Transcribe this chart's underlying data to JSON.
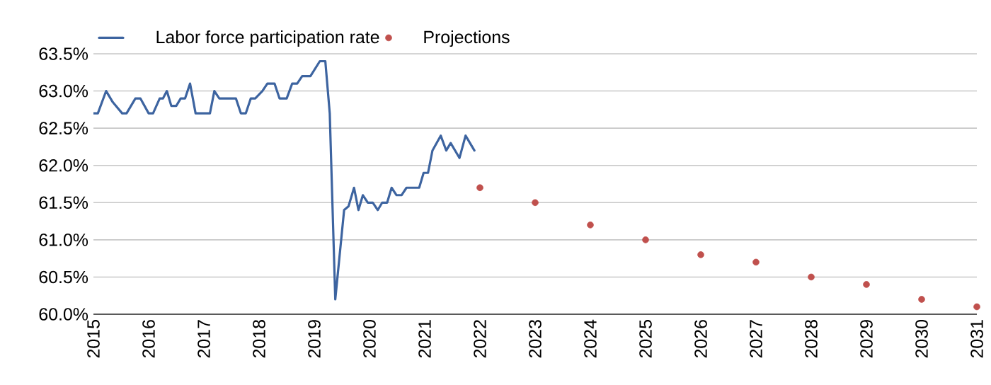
{
  "chart_data": {
    "type": "line",
    "xlim": [
      2015,
      2031
    ],
    "ylim": [
      60.0,
      63.5
    ],
    "xticks": [
      2015,
      2016,
      2017,
      2018,
      2019,
      2020,
      2021,
      2022,
      2023,
      2024,
      2025,
      2026,
      2027,
      2028,
      2029,
      2030,
      2031
    ],
    "yticks": [
      {
        "value": 60.0,
        "label": "60.0%"
      },
      {
        "value": 60.5,
        "label": "60.5%"
      },
      {
        "value": 61.0,
        "label": "61.0%"
      },
      {
        "value": 61.5,
        "label": "61.5%"
      },
      {
        "value": 62.0,
        "label": "62.0%"
      },
      {
        "value": 62.5,
        "label": "62.5%"
      },
      {
        "value": 63.0,
        "label": "63.0%"
      },
      {
        "value": 63.5,
        "label": "63.5%"
      }
    ],
    "grid": "y",
    "legend": "top left",
    "series": [
      {
        "name": "Labor force participation rate",
        "color": "#3d64a0",
        "x": [
          2015.0,
          2015.08,
          2015.23,
          2015.35,
          2015.52,
          2015.6,
          2015.76,
          2015.85,
          2016.0,
          2016.08,
          2016.2,
          2016.26,
          2016.33,
          2016.41,
          2016.5,
          2016.58,
          2016.66,
          2016.75,
          2016.85,
          2017.11,
          2017.19,
          2017.28,
          2017.58,
          2017.67,
          2017.76,
          2017.85,
          2017.93,
          2018.06,
          2018.15,
          2018.28,
          2018.37,
          2018.5,
          2018.6,
          2018.69,
          2018.78,
          2018.93,
          2019.1,
          2019.2,
          2019.28,
          2019.38,
          2019.54,
          2019.62,
          2019.72,
          2019.8,
          2019.88,
          2019.97,
          2020.06,
          2020.15,
          2020.23,
          2020.32,
          2020.4,
          2020.49,
          2020.58,
          2020.67,
          2020.9,
          2020.98,
          2021.06,
          2021.14,
          2021.29,
          2021.39,
          2021.47,
          2021.63,
          2021.74,
          2021.9
        ],
        "values": [
          62.7,
          62.7,
          63.0,
          62.85,
          62.7,
          62.7,
          62.9,
          62.9,
          62.7,
          62.7,
          62.9,
          62.9,
          63.0,
          62.8,
          62.8,
          62.9,
          62.9,
          63.1,
          62.7,
          62.7,
          63.0,
          62.9,
          62.9,
          62.7,
          62.7,
          62.9,
          62.9,
          63.0,
          63.1,
          63.1,
          62.9,
          62.9,
          63.1,
          63.1,
          63.2,
          63.2,
          63.4,
          63.4,
          62.7,
          60.2,
          61.4,
          61.45,
          61.7,
          61.4,
          61.6,
          61.5,
          61.5,
          61.4,
          61.5,
          61.5,
          61.7,
          61.6,
          61.6,
          61.7,
          61.7,
          61.9,
          61.9,
          62.2,
          62.4,
          62.2,
          62.3,
          62.1,
          62.4,
          62.2
        ]
      },
      {
        "name": "Projections",
        "type": "scatter",
        "marker": "circle",
        "color": "#c0504d",
        "x": [
          2022,
          2023,
          2024,
          2025,
          2026,
          2027,
          2028,
          2029,
          2030,
          2031
        ],
        "values": [
          61.7,
          61.5,
          61.2,
          61.0,
          60.8,
          60.7,
          60.5,
          60.4,
          60.2,
          60.1
        ]
      }
    ]
  }
}
